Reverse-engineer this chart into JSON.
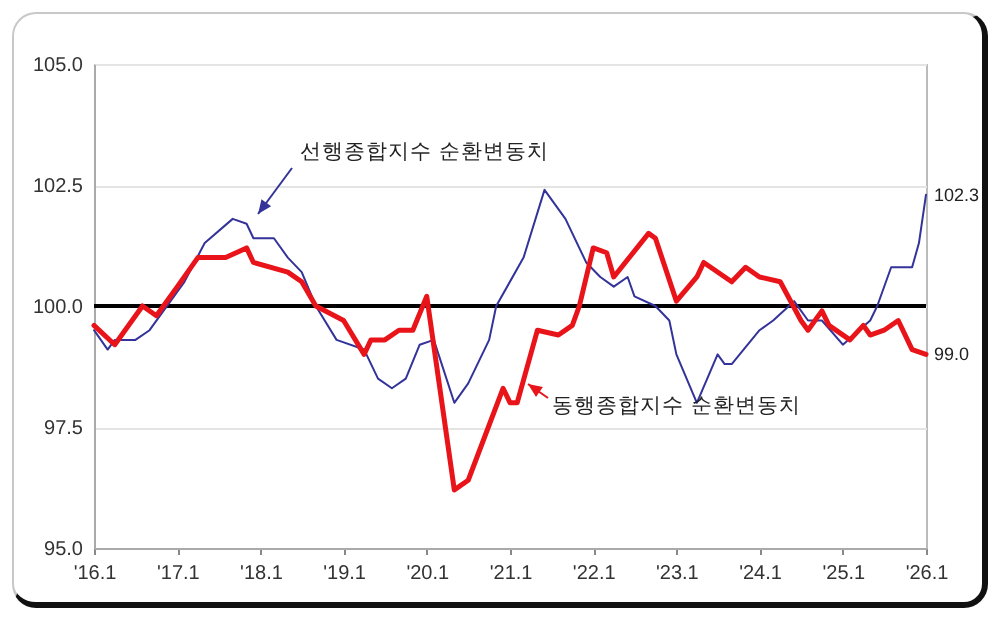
{
  "chart_data": {
    "type": "line",
    "xlim": [
      "2016-01",
      "2026-01"
    ],
    "xticks": [
      {
        "value": "2016-01",
        "label": "'16.1"
      },
      {
        "value": "2017-01",
        "label": "'17.1"
      },
      {
        "value": "2018-01",
        "label": "'18.1"
      },
      {
        "value": "2019-01",
        "label": "'19.1"
      },
      {
        "value": "2020-01",
        "label": "'20.1"
      },
      {
        "value": "2021-01",
        "label": "'21.1"
      },
      {
        "value": "2022-01",
        "label": "'22.1"
      },
      {
        "value": "2023-01",
        "label": "'23.1"
      },
      {
        "value": "2024-01",
        "label": "'24.1"
      },
      {
        "value": "2025-01",
        "label": "'25.1"
      },
      {
        "value": "2026-01",
        "label": "'26.1"
      }
    ],
    "ylim": [
      95,
      105
    ],
    "yticks": [
      {
        "value": 95,
        "label": "95.0"
      },
      97.5,
      {
        "value": 100,
        "label": "100.0"
      },
      102.5,
      {
        "value": 105,
        "label": "105.0"
      }
    ],
    "grid": "y",
    "ref_lines": [
      {
        "axis": "y",
        "value": 100,
        "color": "#000000"
      }
    ],
    "series": [
      {
        "name": "선행종합지수 순환변동치",
        "color": "#333399",
        "x": [
          "2016-01",
          "2016-03",
          "2016-04",
          "2016-07",
          "2016-09",
          "2017-02",
          "2017-05",
          "2017-09",
          "2017-11",
          "2017-12",
          "2018-03",
          "2018-05",
          "2018-07",
          "2018-09",
          "2018-12",
          "2019-04",
          "2019-06",
          "2019-08",
          "2019-10",
          "2019-12",
          "2020-02",
          "2020-05",
          "2020-07",
          "2020-10",
          "2020-11",
          "2021-03",
          "2021-06",
          "2021-09",
          "2021-12",
          "2022-02",
          "2022-04",
          "2022-06",
          "2022-07",
          "2022-10",
          "2022-12",
          "2023-01",
          "2023-04",
          "2023-07",
          "2023-08",
          "2023-09",
          "2024-01",
          "2024-03",
          "2024-06",
          "2024-08",
          "2024-10",
          "2025-01",
          "2025-05",
          "2025-06",
          "2025-08",
          "2025-11",
          "2025-12",
          "2026-01"
        ],
        "values": [
          99.5,
          99.1,
          99.3,
          99.3,
          99.5,
          100.5,
          101.3,
          101.8,
          101.7,
          101.4,
          101.4,
          101.0,
          100.7,
          100.0,
          99.3,
          99.1,
          98.5,
          98.3,
          98.5,
          99.2,
          99.3,
          98.0,
          98.4,
          99.3,
          100.0,
          101.0,
          102.4,
          101.8,
          100.9,
          100.6,
          100.4,
          100.6,
          100.2,
          100.0,
          99.7,
          99.0,
          98.0,
          99.0,
          98.8,
          98.8,
          99.5,
          99.7,
          100.1,
          99.7,
          99.7,
          99.2,
          99.7,
          100.0,
          100.8,
          100.8,
          101.3,
          102.3
        ]
      },
      {
        "name": "동행종합지수 순환변동치",
        "color": "#e8141a",
        "x": [
          "2016-01",
          "2016-04",
          "2016-08",
          "2016-10",
          "2017-01",
          "2017-04",
          "2017-08",
          "2017-11",
          "2017-12",
          "2018-05",
          "2018-07",
          "2018-09",
          "2019-01",
          "2019-04",
          "2019-05",
          "2019-07",
          "2019-09",
          "2019-11",
          "2020-01",
          "2020-05",
          "2020-07",
          "2020-12",
          "2021-01",
          "2021-02",
          "2021-05",
          "2021-08",
          "2021-10",
          "2021-11",
          "2022-01",
          "2022-03",
          "2022-04",
          "2022-09",
          "2022-10",
          "2023-01",
          "2023-04",
          "2023-05",
          "2023-09",
          "2023-11",
          "2024-01",
          "2024-04",
          "2024-07",
          "2024-08",
          "2024-10",
          "2024-11",
          "2025-02",
          "2025-04",
          "2025-05",
          "2025-07",
          "2025-09",
          "2025-11",
          "2026-01"
        ],
        "values": [
          99.6,
          99.2,
          100.0,
          99.8,
          100.4,
          101.0,
          101.0,
          101.2,
          100.9,
          100.7,
          100.5,
          100.0,
          99.7,
          99.0,
          99.3,
          99.3,
          99.5,
          99.5,
          100.2,
          96.2,
          96.4,
          98.3,
          98.0,
          98.0,
          99.5,
          99.4,
          99.6,
          100.0,
          101.2,
          101.1,
          100.6,
          101.5,
          101.4,
          100.1,
          100.6,
          100.9,
          100.5,
          100.8,
          100.6,
          100.5,
          99.7,
          99.5,
          99.9,
          99.6,
          99.3,
          99.6,
          99.4,
          99.5,
          99.7,
          99.1,
          99.0
        ]
      }
    ],
    "annotations": [
      {
        "text": "102.3",
        "x": "2026-01",
        "y": 102.3
      },
      {
        "text": "99.0",
        "x": "2026-01",
        "y": 99.0
      }
    ]
  }
}
